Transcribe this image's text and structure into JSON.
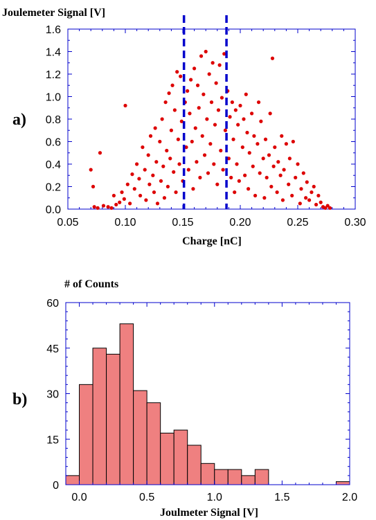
{
  "chart_data": [
    {
      "type": "scatter",
      "panel_label": "a)",
      "ylabel": "Joulemeter Signal [V]",
      "xlabel": "Charge [nC]",
      "xlim": [
        0.05,
        0.3
      ],
      "ylim": [
        0.0,
        1.6
      ],
      "xticks": [
        0.05,
        0.1,
        0.15,
        0.2,
        0.25,
        0.3
      ],
      "xtick_labels": [
        "0.05",
        "0.10",
        "0.15",
        "0.20",
        "0.25",
        "0.30"
      ],
      "yticks": [
        0.0,
        0.2,
        0.4,
        0.6,
        0.8,
        1.0,
        1.2,
        1.4,
        1.6
      ],
      "ytick_labels": [
        "0.0",
        "0.2",
        "0.4",
        "0.6",
        "0.8",
        "1.0",
        "1.2",
        "1.4",
        "1.6"
      ],
      "marker_color": "#dd0000",
      "vlines": {
        "x": [
          0.151,
          0.188
        ],
        "color": "#0000cc",
        "style": "dashed"
      },
      "series": [
        {
          "points": [
            [
              0.07,
              0.35
            ],
            [
              0.072,
              0.2
            ],
            [
              0.078,
              0.5
            ],
            [
              0.1,
              0.92
            ],
            [
              0.073,
              0.02
            ],
            [
              0.076,
              0.01
            ],
            [
              0.081,
              0.03
            ],
            [
              0.085,
              0.02
            ],
            [
              0.088,
              0.01
            ],
            [
              0.09,
              0.12
            ],
            [
              0.092,
              0.04
            ],
            [
              0.095,
              0.06
            ],
            [
              0.097,
              0.15
            ],
            [
              0.099,
              0.09
            ],
            [
              0.102,
              0.22
            ],
            [
              0.104,
              0.05
            ],
            [
              0.106,
              0.31
            ],
            [
              0.108,
              0.18
            ],
            [
              0.11,
              0.4
            ],
            [
              0.112,
              0.27
            ],
            [
              0.113,
              0.12
            ],
            [
              0.115,
              0.55
            ],
            [
              0.117,
              0.35
            ],
            [
              0.118,
              0.08
            ],
            [
              0.12,
              0.48
            ],
            [
              0.121,
              0.22
            ],
            [
              0.122,
              0.65
            ],
            [
              0.124,
              0.3
            ],
            [
              0.125,
              0.15
            ],
            [
              0.126,
              0.72
            ],
            [
              0.127,
              0.42
            ],
            [
              0.128,
              0.05
            ],
            [
              0.13,
              0.6
            ],
            [
              0.131,
              0.25
            ],
            [
              0.132,
              0.8
            ],
            [
              0.133,
              0.38
            ],
            [
              0.134,
              0.1
            ],
            [
              0.135,
              0.95
            ],
            [
              0.136,
              0.52
            ],
            [
              0.137,
              0.2
            ],
            [
              0.138,
              1.03
            ],
            [
              0.139,
              0.45
            ],
            [
              0.14,
              0.7
            ],
            [
              0.141,
              1.1
            ],
            [
              0.142,
              0.33
            ],
            [
              0.143,
              0.88
            ],
            [
              0.144,
              0.15
            ],
            [
              0.145,
              1.22
            ],
            [
              0.146,
              0.62
            ],
            [
              0.147,
              0.4
            ],
            [
              0.148,
              1.18
            ],
            [
              0.149,
              0.78
            ],
            [
              0.15,
              0.25
            ],
            [
              0.152,
              0.95
            ],
            [
              0.153,
              0.55
            ],
            [
              0.154,
              1.05
            ],
            [
              0.155,
              0.35
            ],
            [
              0.156,
              0.85
            ],
            [
              0.157,
              1.15
            ],
            [
              0.158,
              0.6
            ],
            [
              0.159,
              0.18
            ],
            [
              0.16,
              1.25
            ],
            [
              0.161,
              0.72
            ],
            [
              0.162,
              0.42
            ],
            [
              0.163,
              1.1
            ],
            [
              0.164,
              0.9
            ],
            [
              0.165,
              0.28
            ],
            [
              0.166,
              1.36
            ],
            [
              0.167,
              0.65
            ],
            [
              0.168,
              1.02
            ],
            [
              0.169,
              0.48
            ],
            [
              0.17,
              1.4
            ],
            [
              0.171,
              0.8
            ],
            [
              0.172,
              0.32
            ],
            [
              0.173,
              1.2
            ],
            [
              0.174,
              0.58
            ],
            [
              0.175,
              0.95
            ],
            [
              0.176,
              1.3
            ],
            [
              0.177,
              0.4
            ],
            [
              0.178,
              0.75
            ],
            [
              0.179,
              1.12
            ],
            [
              0.18,
              0.22
            ],
            [
              0.181,
              0.88
            ],
            [
              0.182,
              1.28
            ],
            [
              0.183,
              0.52
            ],
            [
              0.184,
              0.99
            ],
            [
              0.185,
              0.35
            ],
            [
              0.186,
              1.38
            ],
            [
              0.187,
              0.7
            ],
            [
              0.189,
              1.05
            ],
            [
              0.19,
              0.45
            ],
            [
              0.191,
              0.82
            ],
            [
              0.192,
              0.28
            ],
            [
              0.193,
              0.95
            ],
            [
              0.194,
              0.62
            ],
            [
              0.195,
              0.15
            ],
            [
              0.196,
              0.88
            ],
            [
              0.197,
              0.4
            ],
            [
              0.198,
              0.75
            ],
            [
              0.199,
              0.25
            ],
            [
              0.2,
              0.92
            ],
            [
              0.202,
              0.55
            ],
            [
              0.203,
              0.8
            ],
            [
              0.204,
              0.3
            ],
            [
              0.205,
              1.02
            ],
            [
              0.206,
              0.68
            ],
            [
              0.207,
              0.18
            ],
            [
              0.208,
              0.5
            ],
            [
              0.21,
              0.85
            ],
            [
              0.211,
              0.38
            ],
            [
              0.212,
              0.65
            ],
            [
              0.213,
              0.12
            ],
            [
              0.215,
              0.58
            ],
            [
              0.216,
              0.95
            ],
            [
              0.217,
              0.32
            ],
            [
              0.218,
              0.78
            ],
            [
              0.22,
              0.45
            ],
            [
              0.221,
              0.1
            ],
            [
              0.222,
              0.62
            ],
            [
              0.223,
              0.28
            ],
            [
              0.225,
              0.48
            ],
            [
              0.226,
              0.85
            ],
            [
              0.227,
              0.2
            ],
            [
              0.228,
              1.34
            ],
            [
              0.229,
              0.38
            ],
            [
              0.23,
              0.55
            ],
            [
              0.232,
              0.15
            ],
            [
              0.233,
              0.42
            ],
            [
              0.235,
              0.3
            ],
            [
              0.236,
              0.65
            ],
            [
              0.237,
              0.08
            ],
            [
              0.238,
              0.35
            ],
            [
              0.24,
              0.58
            ],
            [
              0.242,
              0.22
            ],
            [
              0.243,
              0.45
            ],
            [
              0.245,
              0.12
            ],
            [
              0.246,
              0.6
            ],
            [
              0.248,
              0.28
            ],
            [
              0.25,
              0.4
            ],
            [
              0.252,
              0.05
            ],
            [
              0.253,
              0.18
            ],
            [
              0.255,
              0.32
            ],
            [
              0.257,
              0.1
            ],
            [
              0.258,
              0.24
            ],
            [
              0.26,
              0.08
            ],
            [
              0.262,
              0.15
            ],
            [
              0.264,
              0.2
            ],
            [
              0.266,
              0.04
            ],
            [
              0.268,
              0.12
            ],
            [
              0.27,
              0.06
            ],
            [
              0.272,
              0.02
            ],
            [
              0.274,
              0.01
            ],
            [
              0.276,
              0.03
            ],
            [
              0.278,
              0.01
            ]
          ]
        }
      ]
    },
    {
      "type": "bar",
      "subtype": "histogram",
      "panel_label": "b)",
      "ylabel": "# of Counts",
      "xlabel": "Joulmeter Signal [V]",
      "xlim": [
        -0.1,
        2.0
      ],
      "ylim": [
        0,
        60
      ],
      "xticks": [
        0.0,
        0.5,
        1.0,
        1.5,
        2.0
      ],
      "xtick_labels": [
        "0.0",
        "0.5",
        "1.0",
        "1.5",
        "2.0"
      ],
      "yticks": [
        0,
        15,
        30,
        45,
        60
      ],
      "ytick_labels": [
        "0",
        "15",
        "30",
        "45",
        "60"
      ],
      "bin_width": 0.1,
      "bar_color": "#ef8080",
      "bar_edge_color": "#000000",
      "bin_centers": [
        -0.05,
        0.05,
        0.15,
        0.25,
        0.35,
        0.45,
        0.55,
        0.65,
        0.75,
        0.85,
        0.95,
        1.05,
        1.15,
        1.25,
        1.35,
        1.45,
        1.55,
        1.65,
        1.75,
        1.85,
        1.95
      ],
      "values": [
        3,
        33,
        45,
        43,
        53,
        31,
        27,
        17,
        18,
        13,
        7,
        5,
        5,
        3,
        5,
        0,
        0,
        0,
        0,
        0,
        1
      ]
    }
  ]
}
